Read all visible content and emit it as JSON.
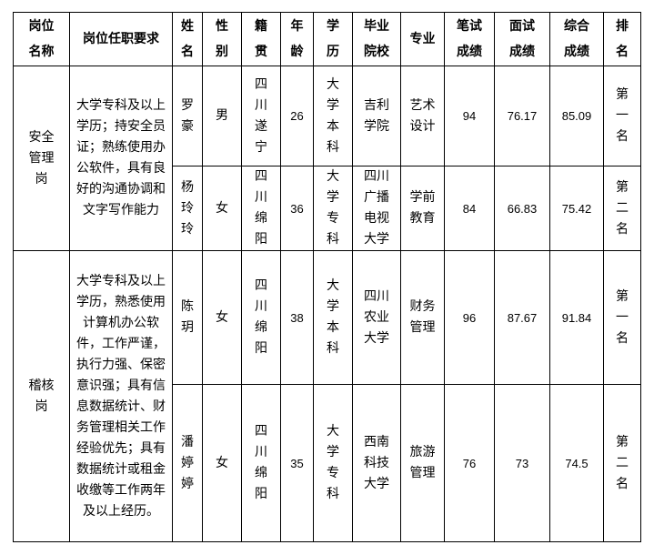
{
  "headers": [
    "岗位名称",
    "岗位任职要求",
    "姓名",
    "性别",
    "籍贯",
    "年龄",
    "学历",
    "毕业院校",
    "专业",
    "笔试成绩",
    "面试成绩",
    "综合成绩",
    "排名"
  ],
  "groups": [
    {
      "position": "安全管理岗",
      "requirement": "大学专科及以上学历；持安全员证；熟练使用办公软件，具有良好的沟通协调和文字写作能力"
    },
    {
      "position": "稽核岗",
      "requirement": "大学专科及以上学历，熟悉使用计算机办公软件，工作严谨，执行力强、保密意识强；具有信息数据统计、财务管理相关工作经验优先；具有数据统计或租金收缴等工作两年及以上经历。"
    }
  ],
  "rows": [
    {
      "name": "罗豪",
      "gender": "男",
      "origin": "四川遂宁",
      "age": "26",
      "education": "大学本科",
      "school": "吉利学院",
      "major": "艺术设计",
      "written": "94",
      "interview": "76.17",
      "total": "85.09",
      "rank": "第一名"
    },
    {
      "name": "杨玲玲",
      "gender": "女",
      "origin": "四川绵阳",
      "age": "36",
      "education": "大学专科",
      "school": "四川广播电视大学",
      "major": "学前教育",
      "written": "84",
      "interview": "66.83",
      "total": "75.42",
      "rank": "第二名"
    },
    {
      "name": "陈玥",
      "gender": "女",
      "origin": "四川绵阳",
      "age": "38",
      "education": "大学本科",
      "school": "四川农业大学",
      "major": "财务管理",
      "written": "96",
      "interview": "87.67",
      "total": "91.84",
      "rank": "第一名"
    },
    {
      "name": "潘婷婷",
      "gender": "女",
      "origin": "四川绵阳",
      "age": "35",
      "education": "大学专科",
      "school": "西南科技大学",
      "major": "旅游管理",
      "written": "76",
      "interview": "73",
      "total": "74.5",
      "rank": "第二名"
    }
  ]
}
